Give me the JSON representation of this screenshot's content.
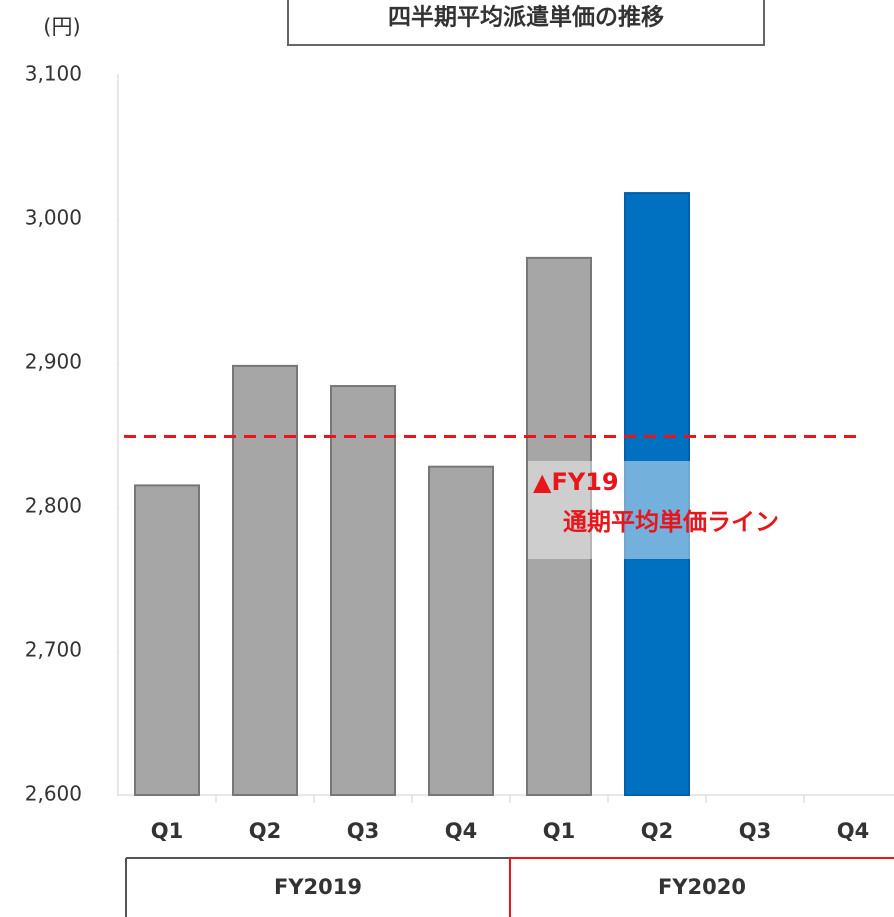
{
  "chart_data": {
    "type": "bar",
    "title": "四半期平均派遣単価の推移",
    "y_unit": "(円)",
    "categories": [
      "Q1",
      "Q2",
      "Q3",
      "Q4",
      "Q1",
      "Q2",
      "Q3",
      "Q4"
    ],
    "groups": [
      {
        "label": "FY2019",
        "span": 4
      },
      {
        "label": "FY2020",
        "span": 4
      }
    ],
    "values": [
      2815,
      2898,
      2884,
      2828,
      2973,
      3018,
      null,
      null
    ],
    "colors": [
      "#a6a6a6",
      "#a6a6a6",
      "#a6a6a6",
      "#a6a6a6",
      "#a6a6a6",
      "#0070c0",
      "#a6a6a6",
      "#a6a6a6"
    ],
    "ylim": [
      2600,
      3100
    ],
    "yticks": [
      {
        "value": 2600,
        "label": "2,600"
      },
      {
        "value": 2700,
        "label": "2,700"
      },
      {
        "value": 2800,
        "label": "2,800"
      },
      {
        "value": 2900,
        "label": "2,900"
      },
      {
        "value": 3000,
        "label": "3,000"
      },
      {
        "value": 3100,
        "label": "3,100"
      }
    ],
    "reference_line": {
      "value": 2849,
      "color": "#e8161b",
      "label_lines": [
        "▲FY19",
        "通期平均単価ライン"
      ]
    }
  }
}
